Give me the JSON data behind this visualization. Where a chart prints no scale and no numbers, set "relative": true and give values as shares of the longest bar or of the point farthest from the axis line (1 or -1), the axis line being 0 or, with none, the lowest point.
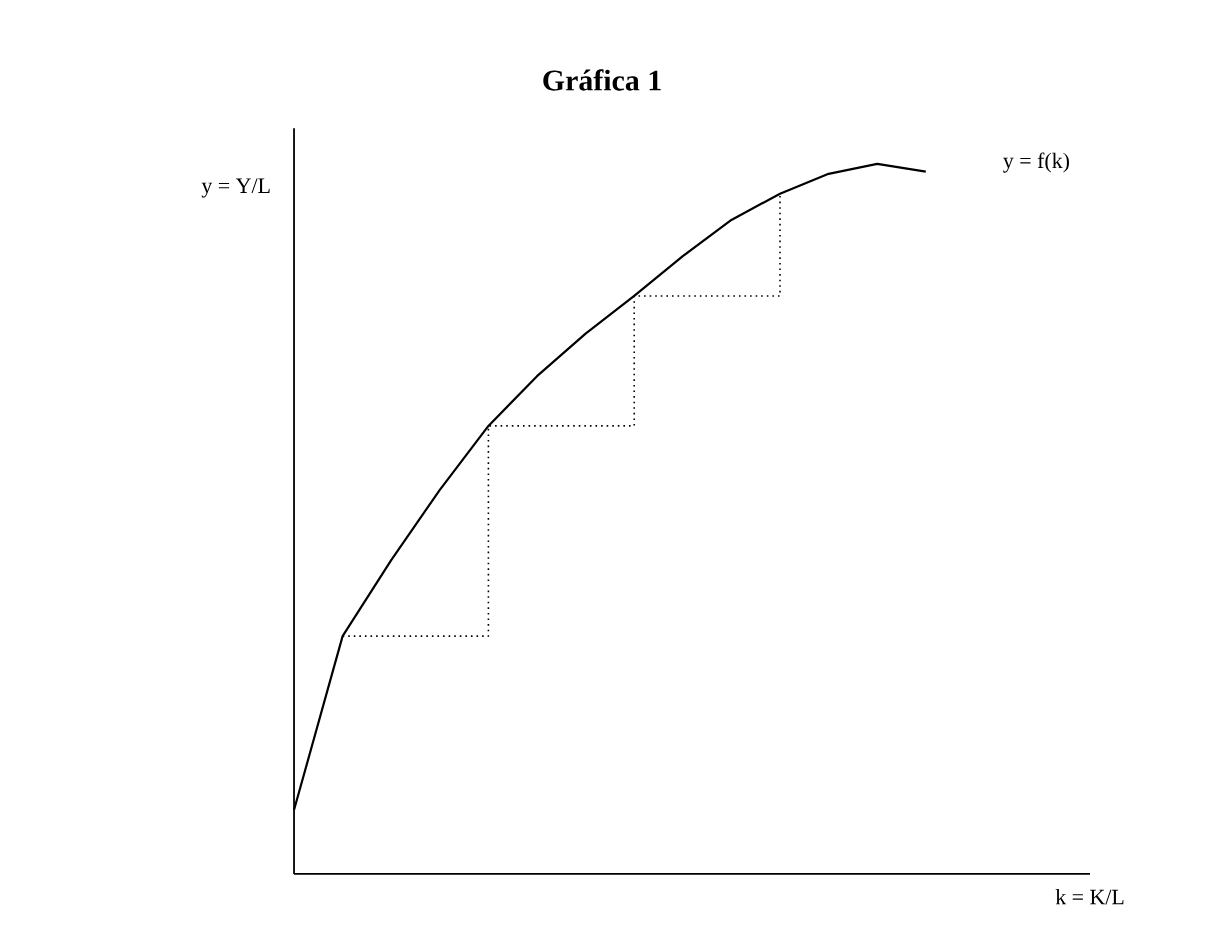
{
  "chart_data": {
    "type": "line",
    "title": "Gráfica 1",
    "xlabel": "k = K/L",
    "ylabel": "y = Y/L",
    "relative": true,
    "marker": "none",
    "categories": [
      null,
      null,
      null,
      null,
      null,
      null,
      null,
      null,
      null,
      null,
      null,
      null,
      null,
      null
    ],
    "series": [
      {
        "name": "y = f(k)",
        "color": "#000000",
        "line_style": "solid",
        "values": [
          0.09,
          0.335,
          0.442,
          0.541,
          0.631,
          0.701,
          0.761,
          0.814,
          0.87,
          0.921,
          0.958,
          0.986,
          1.0,
          0.989
        ]
      },
      {
        "type": "step",
        "color": "#000000",
        "line_style": "dotted",
        "values": [
          null,
          0.335,
          0.335,
          0.335,
          0.631,
          0.631,
          0.631,
          0.814,
          0.814,
          0.814,
          0.958,
          null,
          null,
          null
        ]
      }
    ]
  }
}
